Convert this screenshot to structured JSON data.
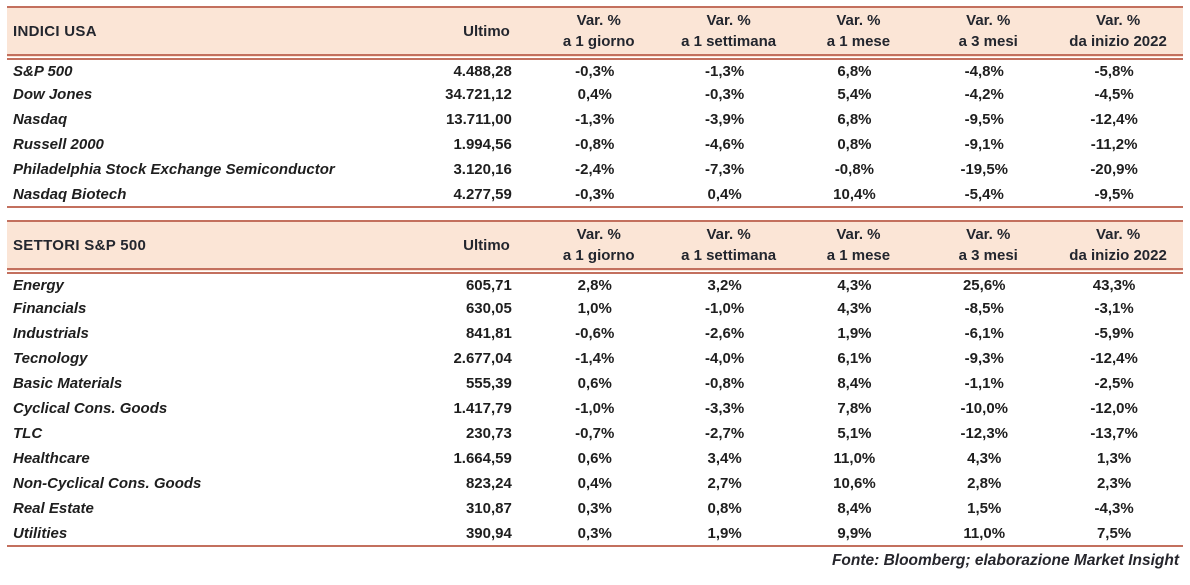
{
  "colors": {
    "header_bg": "#fbe5d6",
    "rule": "#c3705e",
    "text": "#1e1e1e"
  },
  "footer": {
    "text": "Fonte: Bloomberg; elaborazione Market Insight"
  },
  "tables": [
    {
      "title": "INDICI USA",
      "ultimo_label": "Ultimo",
      "var_headers": [
        {
          "line1": "Var. %",
          "line2": "a 1 giorno"
        },
        {
          "line1": "Var. %",
          "line2": "a 1 settimana"
        },
        {
          "line1": "Var. %",
          "line2": "a 1 mese"
        },
        {
          "line1": "Var. %",
          "line2": "a 3 mesi"
        },
        {
          "line1": "Var. %",
          "line2": "da inizio 2022"
        }
      ],
      "rows": [
        {
          "name": "S&P 500",
          "ultimo": "4.488,28",
          "vars": [
            "-0,3%",
            "-1,3%",
            "6,8%",
            "-4,8%",
            "-5,8%"
          ]
        },
        {
          "name": "Dow Jones",
          "ultimo": "34.721,12",
          "vars": [
            "0,4%",
            "-0,3%",
            "5,4%",
            "-4,2%",
            "-4,5%"
          ]
        },
        {
          "name": "Nasdaq",
          "ultimo": "13.711,00",
          "vars": [
            "-1,3%",
            "-3,9%",
            "6,8%",
            "-9,5%",
            "-12,4%"
          ]
        },
        {
          "name": "Russell 2000",
          "ultimo": "1.994,56",
          "vars": [
            "-0,8%",
            "-4,6%",
            "0,8%",
            "-9,1%",
            "-11,2%"
          ]
        },
        {
          "name": "Philadelphia Stock Exchange Semiconductor",
          "ultimo": "3.120,16",
          "vars": [
            "-2,4%",
            "-7,3%",
            "-0,8%",
            "-19,5%",
            "-20,9%"
          ]
        },
        {
          "name": "Nasdaq Biotech",
          "ultimo": "4.277,59",
          "vars": [
            "-0,3%",
            "0,4%",
            "10,4%",
            "-5,4%",
            "-9,5%"
          ]
        }
      ]
    },
    {
      "title": "SETTORI S&P 500",
      "ultimo_label": "Ultimo",
      "var_headers": [
        {
          "line1": "Var. %",
          "line2": "a 1 giorno"
        },
        {
          "line1": "Var. %",
          "line2": "a 1 settimana"
        },
        {
          "line1": "Var. %",
          "line2": "a 1 mese"
        },
        {
          "line1": "Var. %",
          "line2": "a 3 mesi"
        },
        {
          "line1": "Var. %",
          "line2": "da inizio 2022"
        }
      ],
      "rows": [
        {
          "name": "Energy",
          "ultimo": "605,71",
          "vars": [
            "2,8%",
            "3,2%",
            "4,3%",
            "25,6%",
            "43,3%"
          ]
        },
        {
          "name": "Financials",
          "ultimo": "630,05",
          "vars": [
            "1,0%",
            "-1,0%",
            "4,3%",
            "-8,5%",
            "-3,1%"
          ]
        },
        {
          "name": "Industrials",
          "ultimo": "841,81",
          "vars": [
            "-0,6%",
            "-2,6%",
            "1,9%",
            "-6,1%",
            "-5,9%"
          ]
        },
        {
          "name": "Tecnology",
          "ultimo": "2.677,04",
          "vars": [
            "-1,4%",
            "-4,0%",
            "6,1%",
            "-9,3%",
            "-12,4%"
          ]
        },
        {
          "name": "Basic Materials",
          "ultimo": "555,39",
          "vars": [
            "0,6%",
            "-0,8%",
            "8,4%",
            "-1,1%",
            "-2,5%"
          ]
        },
        {
          "name": "Cyclical Cons. Goods",
          "ultimo": "1.417,79",
          "vars": [
            "-1,0%",
            "-3,3%",
            "7,8%",
            "-10,0%",
            "-12,0%"
          ]
        },
        {
          "name": "TLC",
          "ultimo": "230,73",
          "vars": [
            "-0,7%",
            "-2,7%",
            "5,1%",
            "-12,3%",
            "-13,7%"
          ]
        },
        {
          "name": "Healthcare",
          "ultimo": "1.664,59",
          "vars": [
            "0,6%",
            "3,4%",
            "11,0%",
            "4,3%",
            "1,3%"
          ]
        },
        {
          "name": "Non-Cyclical Cons. Goods",
          "ultimo": "823,24",
          "vars": [
            "0,4%",
            "2,7%",
            "10,6%",
            "2,8%",
            "2,3%"
          ]
        },
        {
          "name": "Real Estate",
          "ultimo": "310,87",
          "vars": [
            "0,3%",
            "0,8%",
            "8,4%",
            "1,5%",
            "-4,3%"
          ]
        },
        {
          "name": "Utilities",
          "ultimo": "390,94",
          "vars": [
            "0,3%",
            "1,9%",
            "9,9%",
            "11,0%",
            "7,5%"
          ]
        }
      ]
    }
  ]
}
